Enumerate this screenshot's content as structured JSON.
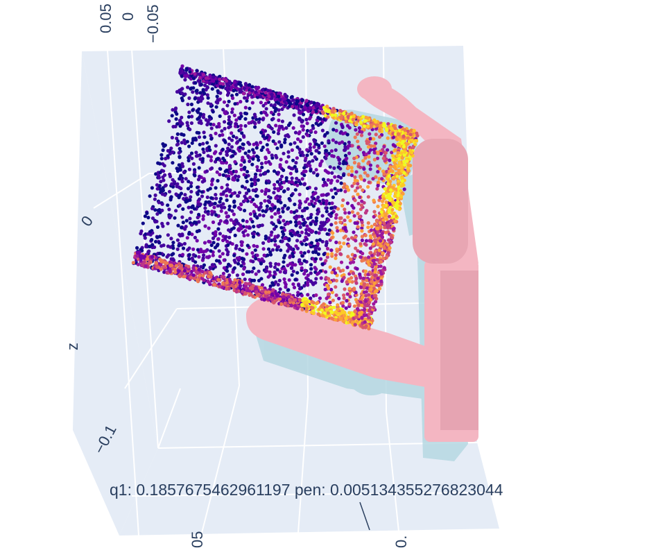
{
  "chart_data": {
    "type": "scatter",
    "scatter3d": true,
    "caption": "q1: 0.1857675462961197  pen: 0.005134355276823044",
    "axes": {
      "x": {
        "label": "",
        "tick_labels": [
          "0.05",
          "0",
          "−0.05"
        ]
      },
      "z": {
        "label": "z",
        "tick_labels": [
          "0",
          "−0.1"
        ]
      },
      "y": {
        "label": "",
        "tick_labels": [
          "05",
          "0."
        ]
      }
    },
    "background": "#e5ecf6",
    "gridline_color": "#ffffff",
    "colorscale": "plasma",
    "colorscale_colors": [
      "#0d0887",
      "#46039f",
      "#7201a8",
      "#9c179e",
      "#bd3786",
      "#d8576b",
      "#ed7953",
      "#fb9f3a",
      "#fdca26",
      "#f0f921"
    ],
    "overlays": [
      {
        "name": "hand mesh",
        "color": "#f4b6c2"
      },
      {
        "name": "hand mesh",
        "color": "#b6d8e2"
      }
    ],
    "grid": true,
    "legend": "none"
  }
}
